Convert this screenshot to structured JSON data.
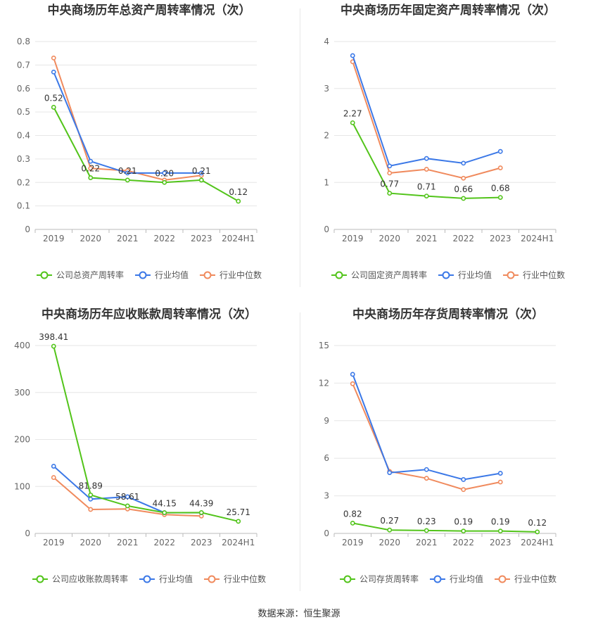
{
  "source_label": "数据来源：恒生聚源",
  "chart_data": [
    {
      "type": "line",
      "title": "中央商场历年总资产周转率情况（次）",
      "categories": [
        "2019",
        "2020",
        "2021",
        "2022",
        "2023",
        "2024H1"
      ],
      "ylim": [
        0,
        0.8
      ],
      "yticks": [
        "0",
        "0.1",
        "0.2",
        "0.3",
        "0.4",
        "0.5",
        "0.6",
        "0.7",
        "0.8"
      ],
      "grid": true,
      "legend_position": "bottom",
      "series": [
        {
          "name": "公司总资产周转率",
          "color": "#52c41a",
          "values": [
            0.52,
            0.22,
            0.21,
            0.2,
            0.21,
            0.12
          ],
          "labels": [
            "0.52",
            "0.22",
            "0.21",
            "0.20",
            "0.21",
            "0.12"
          ]
        },
        {
          "name": "行业均值",
          "color": "#3b78e7",
          "values": [
            0.67,
            0.29,
            0.24,
            0.24,
            0.24,
            null
          ]
        },
        {
          "name": "行业中位数",
          "color": "#f08a5d",
          "values": [
            0.73,
            0.26,
            0.25,
            0.21,
            0.23,
            null
          ]
        }
      ]
    },
    {
      "type": "line",
      "title": "中央商场历年固定资产周转率情况（次）",
      "categories": [
        "2019",
        "2020",
        "2021",
        "2022",
        "2023",
        "2024H1"
      ],
      "ylim": [
        0,
        4
      ],
      "yticks": [
        "0",
        "1",
        "2",
        "3",
        "4"
      ],
      "grid": true,
      "legend_position": "bottom",
      "series": [
        {
          "name": "公司固定资产周转率",
          "color": "#52c41a",
          "values": [
            2.27,
            0.77,
            0.71,
            0.66,
            0.68,
            null
          ],
          "labels": [
            "2.27",
            "0.77",
            "0.71",
            "0.66",
            "0.68",
            ""
          ]
        },
        {
          "name": "行业均值",
          "color": "#3b78e7",
          "values": [
            3.7,
            1.35,
            1.51,
            1.41,
            1.66,
            null
          ]
        },
        {
          "name": "行业中位数",
          "color": "#f08a5d",
          "values": [
            3.57,
            1.2,
            1.28,
            1.09,
            1.31,
            null
          ]
        }
      ]
    },
    {
      "type": "line",
      "title": "中央商场历年应收账款周转率情况（次）",
      "categories": [
        "2019",
        "2020",
        "2021",
        "2022",
        "2023",
        "2024H1"
      ],
      "ylim": [
        0,
        400
      ],
      "yticks": [
        "0",
        "100",
        "200",
        "300",
        "400"
      ],
      "grid": true,
      "legend_position": "bottom",
      "series": [
        {
          "name": "公司应收账款周转率",
          "color": "#52c41a",
          "values": [
            398.41,
            81.89,
            58.61,
            44.15,
            44.39,
            25.71
          ],
          "labels": [
            "398.41",
            "81.89",
            "58.61",
            "44.15",
            "44.39",
            "25.71"
          ]
        },
        {
          "name": "行业均值",
          "color": "#3b78e7",
          "values": [
            143,
            73,
            78,
            44,
            44,
            null
          ]
        },
        {
          "name": "行业中位数",
          "color": "#f08a5d",
          "values": [
            119,
            51,
            52,
            40,
            37,
            null
          ]
        }
      ]
    },
    {
      "type": "line",
      "title": "中央商场历年存货周转率情况（次）",
      "categories": [
        "2019",
        "2020",
        "2021",
        "2022",
        "2023",
        "2024H1"
      ],
      "ylim": [
        0,
        15
      ],
      "yticks": [
        "0",
        "3",
        "6",
        "9",
        "12",
        "15"
      ],
      "grid": true,
      "legend_position": "bottom",
      "series": [
        {
          "name": "公司存货周转率",
          "color": "#52c41a",
          "values": [
            0.82,
            0.27,
            0.23,
            0.19,
            0.19,
            0.12
          ],
          "labels": [
            "0.82",
            "0.27",
            "0.23",
            "0.19",
            "0.19",
            "0.12"
          ]
        },
        {
          "name": "行业均值",
          "color": "#3b78e7",
          "values": [
            12.7,
            4.85,
            5.1,
            4.3,
            4.8,
            null
          ]
        },
        {
          "name": "行业中位数",
          "color": "#f08a5d",
          "values": [
            11.95,
            4.95,
            4.4,
            3.5,
            4.1,
            null
          ]
        }
      ]
    }
  ]
}
